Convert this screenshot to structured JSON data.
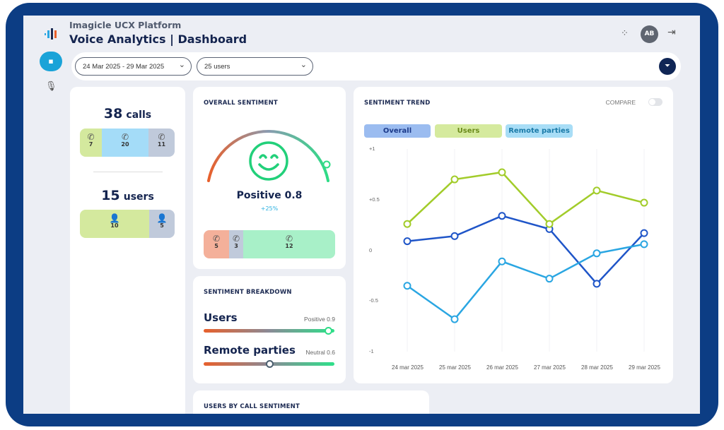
{
  "app": {
    "subtitle": "Imagicle UCX Platform",
    "title": "Voice Analytics | Dashboard",
    "avatar": "AB"
  },
  "filters": {
    "date_range": "24 Mar 2025 - 29 Mar 2025",
    "users": "25 users"
  },
  "summary": {
    "calls_count": "38",
    "calls_label": "calls",
    "calls_breakdown": [
      {
        "icon": "outgoing-call",
        "value": "7"
      },
      {
        "icon": "incoming-call",
        "value": "20"
      },
      {
        "icon": "missed-call",
        "value": "11"
      }
    ],
    "users_count": "15",
    "users_label": "users",
    "users_breakdown": [
      {
        "icon": "user",
        "value": "10"
      },
      {
        "icon": "user",
        "value": "5"
      }
    ]
  },
  "overall_sentiment": {
    "title": "OVERALL SENTIMENT",
    "label": "Positive 0.8",
    "change": "+25%",
    "value": 0.8,
    "calls": [
      {
        "sentiment": "negative",
        "value": "5"
      },
      {
        "sentiment": "neutral",
        "value": "3"
      },
      {
        "sentiment": "positive",
        "value": "12"
      }
    ]
  },
  "breakdown": {
    "title": "SENTIMENT BREAKDOWN",
    "items": [
      {
        "label": "Users",
        "value_label": "Positive 0.9",
        "value": 0.9
      },
      {
        "label": "Remote parties",
        "value_label": "Neutral 0.6",
        "value": 0.6
      }
    ]
  },
  "users_by_call_sentiment": {
    "title": "USERS BY CALL SENTIMENT"
  },
  "trend": {
    "title": "SENTIMENT TREND",
    "compare_label": "COMPARE",
    "compare_on": false
  },
  "chart_data": {
    "type": "line",
    "categories": [
      "24 mar 2025",
      "25 mar 2025",
      "26 mar 2025",
      "27 mar 2025",
      "28 mar 2025",
      "29 mar 2025"
    ],
    "ylim": [
      -1,
      1
    ],
    "yticks": [
      "+1",
      "+0.5",
      "0",
      "-0.5",
      "-1"
    ],
    "grid": "vertical",
    "series": [
      {
        "name": "Overall",
        "color": "#1f55c8",
        "chip_color": "#9bbcf0",
        "values": [
          0.09,
          0.14,
          0.34,
          0.21,
          -0.33,
          0.17
        ]
      },
      {
        "name": "Users",
        "color": "#a2cc2a",
        "chip_color": "#d5ea9e",
        "values": [
          0.26,
          0.7,
          0.77,
          0.26,
          0.59,
          0.47
        ]
      },
      {
        "name": "Remote parties",
        "color": "#2aa6e2",
        "chip_color": "#a8ddf6",
        "values": [
          -0.35,
          -0.68,
          -0.11,
          -0.28,
          -0.03,
          0.06
        ]
      }
    ]
  }
}
